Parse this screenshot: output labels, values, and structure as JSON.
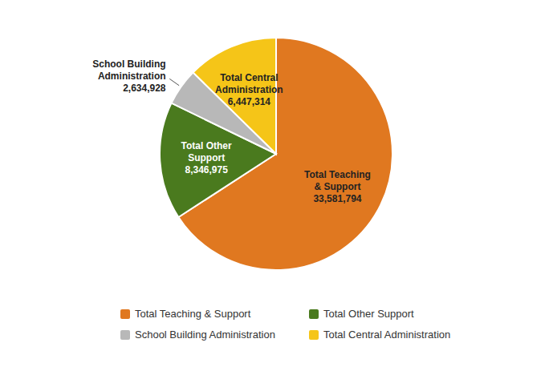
{
  "chart_data": {
    "type": "pie",
    "categories": [
      "Total Teaching & Support",
      "Total Other Support",
      "School Building Administration",
      "Total Central Administration"
    ],
    "values": [
      33581794,
      8346975,
      2634928,
      6447314
    ],
    "value_labels": [
      "33,581,794",
      "8,346,975",
      "2,634,928",
      "6,447,314"
    ],
    "colors": [
      "#E07820",
      "#4A7A1E",
      "#B8B8B8",
      "#F5C518"
    ],
    "data_labels": true,
    "legend": "bottom"
  }
}
